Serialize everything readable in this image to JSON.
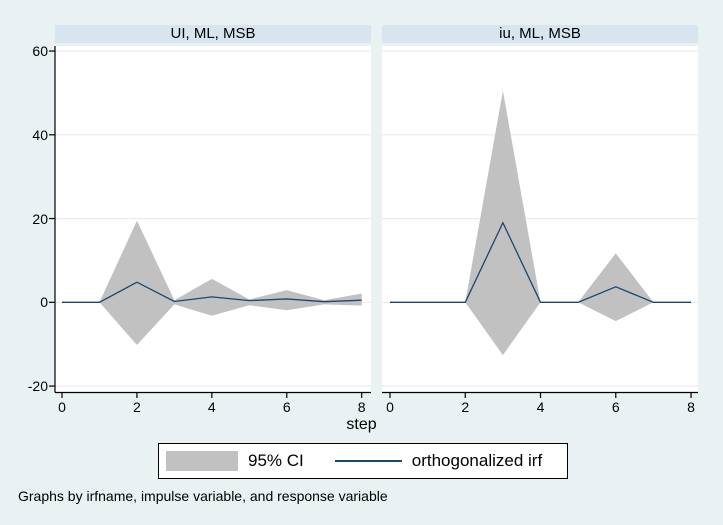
{
  "panels": [
    {
      "title": "UI, ML, MSB"
    },
    {
      "title": "iu, ML, MSB"
    }
  ],
  "axis": {
    "x_label": "step",
    "y_tick_labels": [
      "-20",
      "0",
      "20",
      "40",
      "60"
    ],
    "x_tick_labels": [
      "0",
      "2",
      "4",
      "6",
      "8"
    ]
  },
  "legend": {
    "ci_label": "95% CI",
    "irf_label": "orthogonalized irf"
  },
  "note": "Graphs by irfname, impulse variable, and response variable",
  "colors": {
    "background": "#eaf1f3",
    "plot_background": "#ffffff",
    "strip_background": "#d8e5ee",
    "gridline": "#e4eef2",
    "ci_fill": "#c1c1c1",
    "irf_line": "#1a476f",
    "axis": "#000000",
    "text": "#000000",
    "legend_background": "#ffffff",
    "legend_border": "#000000"
  },
  "chart_data": [
    {
      "type": "area",
      "title": "UI, ML, MSB",
      "xlabel": "step",
      "x": [
        0,
        1,
        2,
        3,
        4,
        5,
        6,
        7,
        8
      ],
      "x_ticks": [
        0,
        2,
        4,
        6,
        8
      ],
      "y_ticks": [
        -20,
        0,
        20,
        40,
        60
      ],
      "xlim": [
        -0.2,
        8.25
      ],
      "ylim": [
        -21.5,
        61.2
      ],
      "grid": true,
      "legend_position": "bottom",
      "series": [
        {
          "name": "95% CI upper",
          "values": [
            0,
            0,
            19.5,
            0.5,
            5.6,
            0.7,
            2.9,
            0.5,
            2.1
          ]
        },
        {
          "name": "95% CI lower",
          "values": [
            0,
            0,
            -10.2,
            -0.5,
            -3.2,
            -0.7,
            -1.9,
            -0.5,
            -0.8
          ]
        },
        {
          "name": "orthogonalized irf",
          "values": [
            0,
            0,
            4.8,
            0.2,
            1.3,
            0.4,
            0.8,
            0.15,
            0.5
          ]
        }
      ]
    },
    {
      "type": "area",
      "title": "iu, ML, MSB",
      "xlabel": "step",
      "x": [
        0,
        1,
        2,
        3,
        4,
        5,
        6,
        7,
        8
      ],
      "x_ticks": [
        0,
        2,
        4,
        6,
        8
      ],
      "y_ticks": [
        -20,
        0,
        20,
        40,
        60
      ],
      "xlim": [
        -0.2,
        8.25
      ],
      "ylim": [
        -21.5,
        61.2
      ],
      "grid": true,
      "legend_position": "bottom",
      "series": [
        {
          "name": "95% CI upper",
          "values": [
            0,
            0,
            0,
            50.5,
            0,
            0,
            11.7,
            0,
            0
          ]
        },
        {
          "name": "95% CI lower",
          "values": [
            0,
            0,
            0,
            -12.6,
            0,
            0,
            -4.5,
            0,
            0
          ]
        },
        {
          "name": "orthogonalized irf",
          "values": [
            0,
            0,
            0,
            19,
            0,
            0,
            3.7,
            0,
            0
          ]
        }
      ]
    }
  ]
}
